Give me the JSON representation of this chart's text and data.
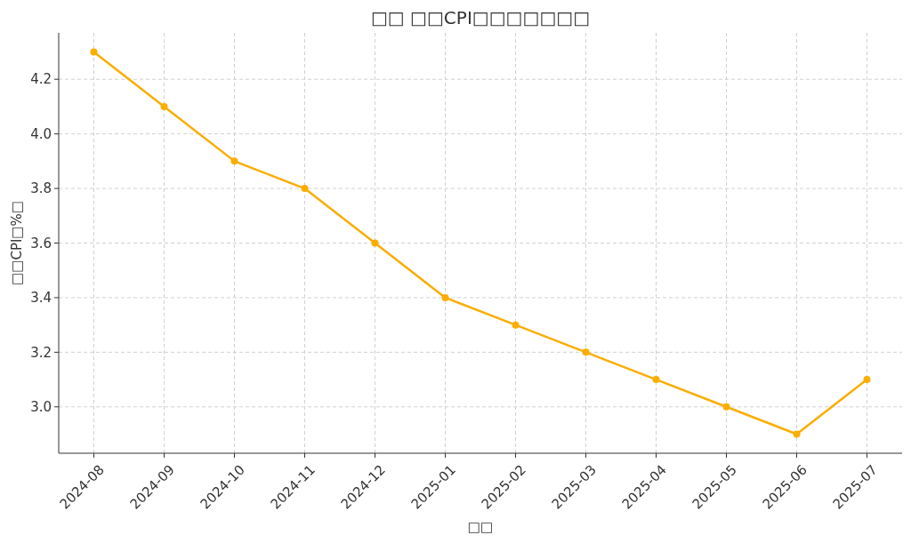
{
  "chart_data": {
    "type": "line",
    "title": "□□ □□CPI□□□□□□□",
    "xlabel": "□□",
    "ylabel": "□□CPI□%□",
    "categories": [
      "2024-08",
      "2024-09",
      "2024-10",
      "2024-11",
      "2024-12",
      "2025-01",
      "2025-02",
      "2025-03",
      "2025-04",
      "2025-05",
      "2025-06",
      "2025-07"
    ],
    "series": [
      {
        "color": "#fbad00",
        "values": [
          4.3,
          4.1,
          3.9,
          3.8,
          3.6,
          3.4,
          3.3,
          3.2,
          3.1,
          3.0,
          2.9,
          3.1
        ]
      }
    ],
    "ylim": [
      2.83,
      4.37
    ],
    "yticks": [
      {
        "value": 3,
        "label": "3.0"
      },
      3.2,
      3.4,
      3.6,
      3.8,
      {
        "value": 4,
        "label": "4.0"
      },
      4.2
    ],
    "grid": true,
    "marker": "circle",
    "line_style": "solid"
  }
}
